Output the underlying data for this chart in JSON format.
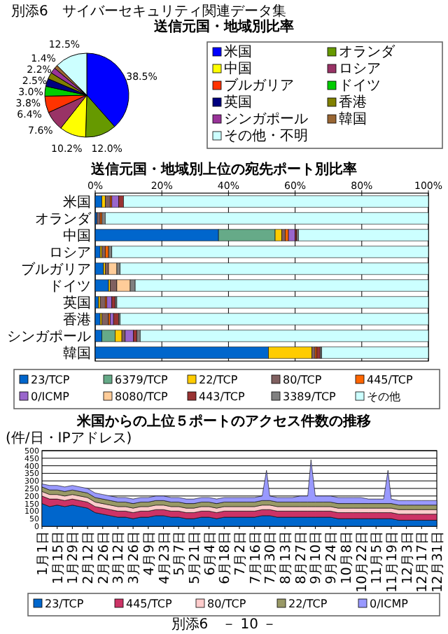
{
  "chart_data": [
    {
      "type": "pie",
      "title": "送信元国・地域別比率",
      "annotations": [
        "別添6　サイバーセキュリティ関連データ集"
      ],
      "legend": "right",
      "categories": [
        "米国",
        "オランダ",
        "中国",
        "ロシア",
        "ブルガリア",
        "ドイツ",
        "英国",
        "香港",
        "シンガポール",
        "韓国",
        "その他・不明"
      ],
      "values": [
        38.5,
        12.0,
        10.2,
        7.6,
        6.4,
        3.8,
        3.0,
        2.5,
        2.2,
        1.4,
        12.5
      ],
      "value_labels": [
        "38.5%",
        "12.0%",
        "10.2%",
        "7.6%",
        "6.4%",
        "3.8%",
        "3.0%",
        "2.5%",
        "2.2%",
        "1.4%",
        "12.5%"
      ],
      "colors": [
        "#0000ff",
        "#669900",
        "#ffff00",
        "#993366",
        "#ff3300",
        "#00cc00",
        "#000080",
        "#808000",
        "#993399",
        "#996633",
        "#ccffff"
      ]
    },
    {
      "type": "bar",
      "orientation": "horizontal",
      "stacked": true,
      "title": "送信元国・地域別上位の宛先ポート別比率",
      "legend": "bottom",
      "grid": "x",
      "categories": [
        "米国",
        "オランダ",
        "中国",
        "ロシア",
        "ブルガリア",
        "ドイツ",
        "英国",
        "香港",
        "シンガポール",
        "韓国"
      ],
      "xlim": [
        0,
        100
      ],
      "xticks": [
        {
          "value": 0,
          "label": "0%"
        },
        {
          "value": 20,
          "label": "20%"
        },
        {
          "value": 40,
          "label": "40%"
        },
        {
          "value": 60,
          "label": "60%"
        },
        {
          "value": 80,
          "label": "80%"
        },
        {
          "value": 100,
          "label": "100%"
        }
      ],
      "series": [
        {
          "name": "23/TCP",
          "color": "#0066cc",
          "values": [
            2,
            0.5,
            37,
            1.5,
            2.5,
            4,
            1,
            1.5,
            2,
            52
          ]
        },
        {
          "name": "6379/TCP",
          "color": "#66aa88",
          "values": [
            0,
            0,
            17,
            0,
            0,
            0,
            0,
            0,
            4,
            0
          ]
        },
        {
          "name": "22/TCP",
          "color": "#ffcc00",
          "values": [
            1,
            0,
            2,
            0.5,
            0.5,
            0.5,
            0.5,
            0.5,
            2,
            13
          ]
        },
        {
          "name": "80/TCP",
          "color": "#806060",
          "values": [
            1.5,
            1,
            1,
            1,
            1,
            2,
            1.5,
            2,
            1,
            1
          ]
        },
        {
          "name": "445/TCP",
          "color": "#ff6600",
          "values": [
            0.5,
            0.5,
            1,
            1,
            0,
            0,
            0.5,
            0.5,
            0,
            0.5
          ]
        },
        {
          "name": "0/ICMP",
          "color": "#9966cc",
          "values": [
            2,
            0,
            2,
            0,
            0,
            0,
            1.5,
            1,
            2.5,
            0
          ]
        },
        {
          "name": "8080/TCP",
          "color": "#ffcc99",
          "values": [
            0,
            0,
            0,
            0,
            2.5,
            4,
            0,
            0,
            0,
            0
          ]
        },
        {
          "name": "443/TCP",
          "color": "#993333",
          "values": [
            1.5,
            0,
            0.5,
            0,
            0,
            0,
            1,
            1.5,
            1,
            1
          ]
        },
        {
          "name": "3389/TCP",
          "color": "#808080",
          "values": [
            0,
            1,
            0.5,
            1,
            1,
            1.5,
            0.5,
            0.5,
            1,
            0.5
          ]
        },
        {
          "name": "その他",
          "color": "#ccffff",
          "values": [
            91.5,
            97,
            39,
            95,
            92.5,
            88,
            93.5,
            92.5,
            86.5,
            32
          ]
        }
      ]
    },
    {
      "type": "area",
      "stacked": true,
      "title": "米国からの上位５ポートのアクセス件数の推移",
      "ylabel": "(件/日・IPアドレス)",
      "annotations": [
        "別添6　－ 10 －"
      ],
      "legend": "bottom",
      "grid": "y",
      "ylim": [
        0,
        500
      ],
      "yticks": [
        0,
        50,
        100,
        150,
        200,
        250,
        300,
        350,
        400,
        450,
        500
      ],
      "xlim": [
        "--01-01",
        "--12-31"
      ],
      "xticks": [
        {
          "value": "--01-01",
          "label": "1月1日"
        },
        {
          "value": "--01-15",
          "label": "1月15日"
        },
        {
          "value": "--01-29",
          "label": "1月29日"
        },
        {
          "value": "--02-12",
          "label": "2月12日"
        },
        {
          "value": "--02-26",
          "label": "2月26日"
        },
        {
          "value": "--03-12",
          "label": "3月12日"
        },
        {
          "value": "--03-26",
          "label": "3月26日"
        },
        {
          "value": "--04-09",
          "label": "4月9日"
        },
        {
          "value": "--04-23",
          "label": "4月23日"
        },
        {
          "value": "--05-07",
          "label": "5月7日"
        },
        {
          "value": "--05-21",
          "label": "5月21日"
        },
        {
          "value": "--06-04",
          "label": "6月4日"
        },
        {
          "value": "--06-18",
          "label": "6月18日"
        },
        {
          "value": "--07-02",
          "label": "7月2日"
        },
        {
          "value": "--07-16",
          "label": "7月16日"
        },
        {
          "value": "--07-30",
          "label": "7月30日"
        },
        {
          "value": "--08-13",
          "label": "8月13日"
        },
        {
          "value": "--08-27",
          "label": "8月27日"
        },
        {
          "value": "--09-10",
          "label": "9月10日"
        },
        {
          "value": "--09-24",
          "label": "9月24日"
        },
        {
          "value": "--10-08",
          "label": "10月8日"
        },
        {
          "value": "--10-22",
          "label": "10月22日"
        },
        {
          "value": "--11-05",
          "label": "11月5日"
        },
        {
          "value": "--11-19",
          "label": "11月19日"
        },
        {
          "value": "--12-03",
          "label": "12月3日"
        },
        {
          "value": "--12-17",
          "label": "12月17日"
        },
        {
          "value": "--12-31",
          "label": "12月31日"
        }
      ],
      "x": [
        "--01-01",
        "--01-08",
        "--01-15",
        "--01-22",
        "--01-29",
        "--02-05",
        "--02-12",
        "--02-19",
        "--02-26",
        "--03-05",
        "--03-12",
        "--03-19",
        "--03-26",
        "--04-02",
        "--04-09",
        "--04-16",
        "--04-23",
        "--04-30",
        "--05-07",
        "--05-14",
        "--05-21",
        "--05-28",
        "--06-04",
        "--06-11",
        "--06-18",
        "--06-25",
        "--07-02",
        "--07-09",
        "--07-16",
        "--07-23",
        "--07-27",
        "--07-30",
        "--08-06",
        "--08-13",
        "--08-20",
        "--08-27",
        "--09-03",
        "--09-06",
        "--09-10",
        "--09-17",
        "--09-24",
        "--10-01",
        "--10-08",
        "--10-15",
        "--10-22",
        "--10-29",
        "--11-05",
        "--11-12",
        "--11-16",
        "--11-19",
        "--11-26",
        "--12-03",
        "--12-10",
        "--12-17",
        "--12-24",
        "--12-31"
      ],
      "series": [
        {
          "name": "23/TCP",
          "color": "#0066cc",
          "values": [
            150,
            130,
            140,
            130,
            140,
            130,
            120,
            90,
            80,
            70,
            60,
            60,
            50,
            60,
            60,
            70,
            70,
            60,
            60,
            50,
            50,
            60,
            60,
            50,
            60,
            60,
            60,
            60,
            60,
            70,
            70,
            70,
            60,
            60,
            60,
            60,
            60,
            60,
            60,
            60,
            60,
            50,
            50,
            50,
            50,
            50,
            50,
            50,
            50,
            50,
            40,
            40,
            40,
            40,
            40,
            40
          ]
        },
        {
          "name": "445/TCP",
          "color": "#cc3366",
          "values": [
            50,
            50,
            40,
            40,
            40,
            40,
            40,
            40,
            40,
            40,
            40,
            40,
            40,
            40,
            40,
            40,
            40,
            40,
            40,
            40,
            40,
            40,
            40,
            40,
            40,
            40,
            40,
            40,
            40,
            40,
            40,
            40,
            40,
            40,
            40,
            40,
            40,
            40,
            40,
            40,
            40,
            40,
            40,
            40,
            40,
            40,
            40,
            40,
            40,
            40,
            40,
            40,
            40,
            40,
            40,
            40
          ]
        },
        {
          "name": "80/TCP",
          "color": "#ffcccc",
          "values": [
            30,
            30,
            30,
            30,
            30,
            30,
            30,
            30,
            30,
            30,
            30,
            30,
            30,
            30,
            30,
            30,
            30,
            30,
            30,
            30,
            30,
            30,
            30,
            30,
            30,
            30,
            30,
            30,
            30,
            30,
            30,
            30,
            30,
            30,
            30,
            30,
            30,
            30,
            30,
            30,
            30,
            30,
            30,
            30,
            30,
            30,
            30,
            30,
            30,
            30,
            30,
            30,
            30,
            30,
            30,
            30
          ]
        },
        {
          "name": "22/TCP",
          "color": "#999966",
          "values": [
            30,
            30,
            30,
            30,
            30,
            30,
            30,
            30,
            30,
            30,
            30,
            30,
            30,
            30,
            30,
            30,
            30,
            30,
            30,
            30,
            30,
            30,
            30,
            30,
            30,
            30,
            30,
            30,
            30,
            30,
            30,
            30,
            30,
            30,
            30,
            30,
            30,
            30,
            30,
            30,
            30,
            30,
            30,
            30,
            30,
            30,
            30,
            30,
            30,
            30,
            30,
            30,
            30,
            30,
            30,
            30
          ]
        },
        {
          "name": "0/ICMP",
          "color": "#9999ff",
          "values": [
            20,
            30,
            30,
            30,
            30,
            30,
            30,
            30,
            30,
            30,
            30,
            30,
            30,
            30,
            30,
            30,
            30,
            30,
            30,
            30,
            30,
            30,
            30,
            30,
            30,
            30,
            30,
            30,
            30,
            30,
            200,
            30,
            30,
            30,
            30,
            40,
            40,
            280,
            40,
            40,
            40,
            40,
            40,
            40,
            40,
            30,
            30,
            30,
            220,
            30,
            30,
            30,
            30,
            30,
            30,
            30
          ]
        }
      ]
    }
  ]
}
